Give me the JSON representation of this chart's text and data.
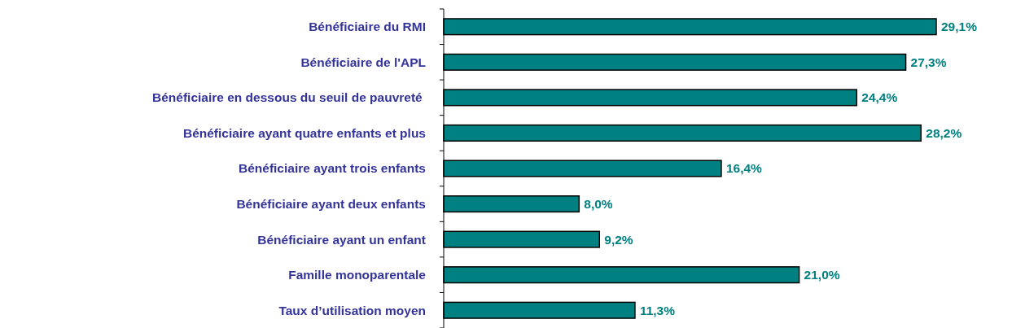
{
  "chart_data": {
    "type": "bar",
    "orientation": "horizontal",
    "categories": [
      "Bénéficiaire du RMI",
      "Bénéficiaire de l'APL",
      "Bénéficiaire en dessous du seuil de pauvreté ",
      "Bénéficiaire ayant quatre enfants et plus",
      "Bénéficiaire ayant trois enfants",
      "Bénéficiaire ayant deux enfants",
      "Bénéficiaire ayant un enfant",
      "Famille monoparentale",
      "Taux d’utilisation moyen"
    ],
    "values": [
      29.1,
      27.3,
      24.4,
      28.2,
      16.4,
      8.0,
      9.2,
      21.0,
      11.3
    ],
    "value_labels": [
      "29,1%",
      "27,3%",
      "24,4%",
      "28,2%",
      "16,4%",
      "8,0%",
      "9,2%",
      "21,0%",
      "11,3%"
    ],
    "color": "#008080",
    "grid": false
  }
}
